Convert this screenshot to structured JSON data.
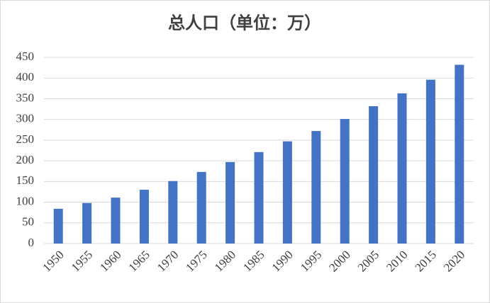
{
  "chart_data": {
    "type": "bar",
    "title": "总人口（单位：万）",
    "categories": [
      "1950",
      "1955",
      "1960",
      "1965",
      "1970",
      "1975",
      "1980",
      "1985",
      "1990",
      "1995",
      "2000",
      "2005",
      "2010",
      "2015",
      "2020"
    ],
    "values": [
      84,
      98,
      111,
      130,
      151,
      173,
      197,
      221,
      247,
      272,
      301,
      332,
      363,
      396,
      432
    ],
    "color": "#4472c4",
    "ylim": [
      0,
      450
    ],
    "yticks": [
      0,
      50,
      100,
      150,
      200,
      250,
      300,
      350,
      400,
      450
    ],
    "grid": true
  }
}
